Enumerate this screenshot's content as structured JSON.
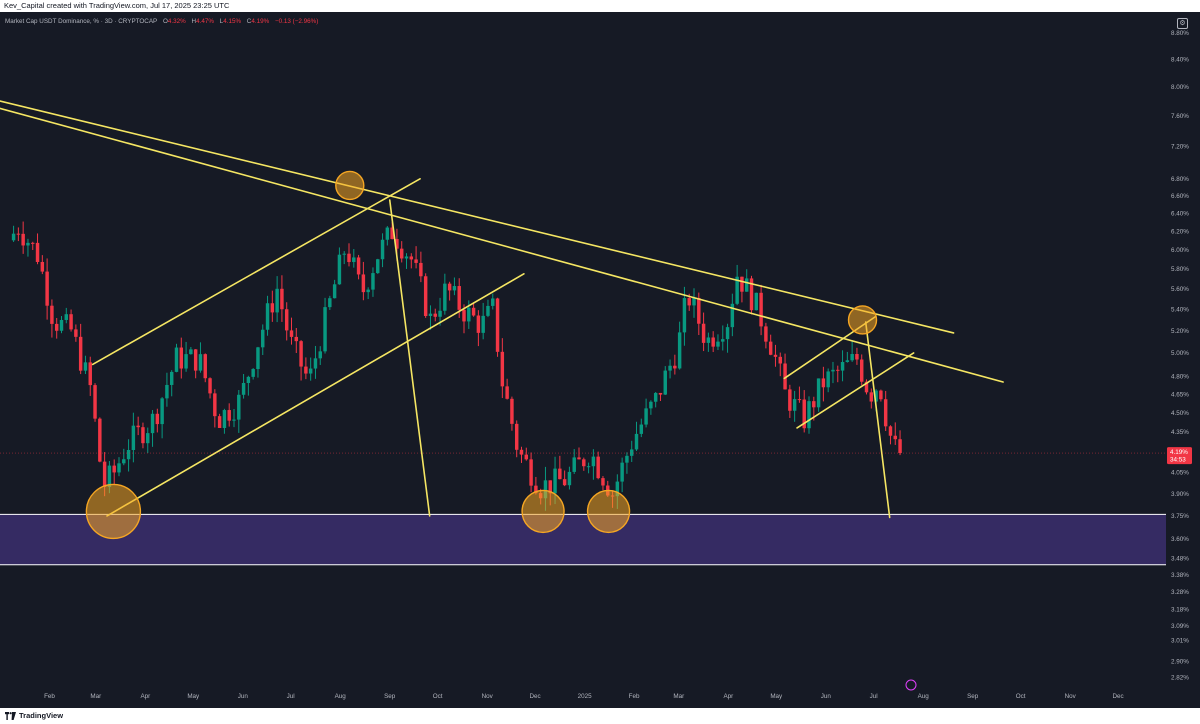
{
  "header": {
    "caption": "Kev_Capital created with TradingView.com, Jul 17, 2025 23:25 UTC"
  },
  "footer": {
    "brand": "TradingView",
    "logo_icon": "tradingview-logo-icon"
  },
  "legend": {
    "symbol": "Market Cap USDT Dominance, % · 3D · CRYPTOCAP",
    "open_label": "O",
    "open": "4.32%",
    "high_label": "H",
    "high": "4.47%",
    "low_label": "L",
    "low": "4.15%",
    "close_label": "C",
    "close": "4.19%",
    "change": "−0.13 (−2.96%)",
    "settings_icon": "settings-icon"
  },
  "colors": {
    "background": "#161a25",
    "up": "#089981",
    "down": "#f23645",
    "trendline": "#f5e663",
    "zone_fill": "#3b2f6e",
    "zone_border": "#ffffff",
    "circle_fill": "#f5a623",
    "text": "#b2b5be"
  },
  "chart_data": {
    "type": "candlestick",
    "title": "",
    "xlabel": "",
    "ylabel": "",
    "grid": false,
    "ylim": [
      2.7,
      9.0
    ],
    "y_scale": "log",
    "y_ticks": [
      "8.80%",
      "8.40%",
      "8.00%",
      "7.60%",
      "7.20%",
      "6.80%",
      "6.60%",
      "6.40%",
      "6.20%",
      "6.00%",
      "5.80%",
      "5.60%",
      "5.40%",
      "5.20%",
      "5.00%",
      "4.80%",
      "4.65%",
      "4.50%",
      "4.35%",
      "4.05%",
      "3.90%",
      "3.75%",
      "3.60%",
      "3.48%",
      "3.38%",
      "3.28%",
      "3.18%",
      "3.09%",
      "3.01%",
      "2.90%",
      "2.82%"
    ],
    "x_ticks": [
      "Feb",
      "Mar",
      "Apr",
      "May",
      "Jun",
      "Jul",
      "Aug",
      "Sep",
      "Oct",
      "Nov",
      "Dec",
      "2025",
      "Feb",
      "Mar",
      "Apr",
      "May",
      "Jun",
      "Jul",
      "Aug",
      "Sep",
      "Oct",
      "Nov",
      "Dec"
    ],
    "last_price": {
      "value": "4.19%",
      "countdown": "34:53"
    },
    "support_zone": {
      "low": 3.44,
      "high": 3.76
    },
    "waypoints": [
      {
        "date": "2024-01-08",
        "value": 6.1
      },
      {
        "date": "2024-01-14",
        "value": 6.25
      },
      {
        "date": "2024-01-26",
        "value": 5.95
      },
      {
        "date": "2024-02-05",
        "value": 5.3
      },
      {
        "date": "2024-02-16",
        "value": 5.2
      },
      {
        "date": "2024-02-28",
        "value": 4.7
      },
      {
        "date": "2024-03-07",
        "value": 3.95
      },
      {
        "date": "2024-03-14",
        "value": 4.05
      },
      {
        "date": "2024-03-22",
        "value": 4.25
      },
      {
        "date": "2024-04-08",
        "value": 4.45
      },
      {
        "date": "2024-04-22",
        "value": 4.95
      },
      {
        "date": "2024-05-06",
        "value": 4.95
      },
      {
        "date": "2024-05-18",
        "value": 4.45
      },
      {
        "date": "2024-06-01",
        "value": 4.6
      },
      {
        "date": "2024-06-12",
        "value": 5.1
      },
      {
        "date": "2024-06-24",
        "value": 5.6
      },
      {
        "date": "2024-07-02",
        "value": 5.1
      },
      {
        "date": "2024-07-14",
        "value": 4.75
      },
      {
        "date": "2024-07-26",
        "value": 5.4
      },
      {
        "date": "2024-08-06",
        "value": 6.05
      },
      {
        "date": "2024-08-16",
        "value": 5.55
      },
      {
        "date": "2024-08-26",
        "value": 5.95
      },
      {
        "date": "2024-09-04",
        "value": 6.2
      },
      {
        "date": "2024-09-16",
        "value": 5.9
      },
      {
        "date": "2024-09-28",
        "value": 5.3
      },
      {
        "date": "2024-10-08",
        "value": 5.6
      },
      {
        "date": "2024-10-18",
        "value": 5.4
      },
      {
        "date": "2024-10-30",
        "value": 5.25
      },
      {
        "date": "2024-11-06",
        "value": 5.4
      },
      {
        "date": "2024-11-12",
        "value": 4.75
      },
      {
        "date": "2024-11-22",
        "value": 4.2
      },
      {
        "date": "2024-12-06",
        "value": 3.95
      },
      {
        "date": "2024-12-22",
        "value": 4.0
      },
      {
        "date": "2025-01-06",
        "value": 4.2
      },
      {
        "date": "2025-01-20",
        "value": 3.9
      },
      {
        "date": "2025-02-02",
        "value": 4.3
      },
      {
        "date": "2025-02-16",
        "value": 4.6
      },
      {
        "date": "2025-03-02",
        "value": 5.05
      },
      {
        "date": "2025-03-08",
        "value": 5.55
      },
      {
        "date": "2025-03-20",
        "value": 5.1
      },
      {
        "date": "2025-04-02",
        "value": 5.3
      },
      {
        "date": "2025-04-08",
        "value": 5.75
      },
      {
        "date": "2025-04-18",
        "value": 5.5
      },
      {
        "date": "2025-04-30",
        "value": 5.05
      },
      {
        "date": "2025-05-08",
        "value": 4.65
      },
      {
        "date": "2025-05-20",
        "value": 4.45
      },
      {
        "date": "2025-06-01",
        "value": 4.75
      },
      {
        "date": "2025-06-12",
        "value": 4.85
      },
      {
        "date": "2025-06-22",
        "value": 4.95
      },
      {
        "date": "2025-06-30",
        "value": 4.65
      },
      {
        "date": "2025-07-06",
        "value": 4.75
      },
      {
        "date": "2025-07-12",
        "value": 4.35
      },
      {
        "date": "2025-07-17",
        "value": 4.19
      }
    ],
    "trendlines": [
      {
        "name": "",
        "points": [
          [
            "2024-01-01",
            7.8
          ],
          [
            "2025-08-20",
            5.18
          ]
        ]
      },
      {
        "name": "",
        "points": [
          [
            "2024-01-01",
            7.7
          ],
          [
            "2025-09-20",
            4.75
          ]
        ]
      },
      {
        "name": "",
        "points": [
          [
            "2024-02-28",
            4.9
          ],
          [
            "2024-09-20",
            6.8
          ]
        ]
      },
      {
        "name": "",
        "points": [
          [
            "2024-03-08",
            3.75
          ],
          [
            "2024-11-24",
            5.75
          ]
        ]
      },
      {
        "name": "",
        "points": [
          [
            "2024-09-01",
            6.55
          ],
          [
            "2024-09-26",
            3.75
          ]
        ]
      },
      {
        "name": "",
        "points": [
          [
            "2025-05-06",
            4.78
          ],
          [
            "2025-07-02",
            5.33
          ]
        ]
      },
      {
        "name": "",
        "points": [
          [
            "2025-05-14",
            4.38
          ],
          [
            "2025-07-26",
            5.0
          ]
        ]
      },
      {
        "name": "",
        "points": [
          [
            "2025-06-26",
            5.28
          ],
          [
            "2025-07-11",
            3.74
          ]
        ]
      }
    ],
    "circles": [
      {
        "date": "2024-03-12",
        "value": 3.78,
        "size": "large"
      },
      {
        "date": "2024-08-07",
        "value": 6.72,
        "size": "small"
      },
      {
        "date": "2024-12-06",
        "value": 3.78,
        "size": "medium"
      },
      {
        "date": "2025-01-16",
        "value": 3.78,
        "size": "medium"
      },
      {
        "date": "2025-06-24",
        "value": 5.3,
        "size": "small"
      }
    ]
  }
}
